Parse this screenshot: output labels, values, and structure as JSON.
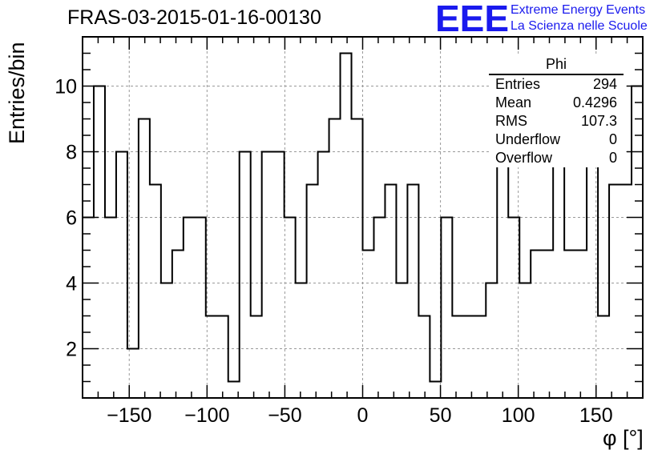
{
  "title": "FRAS-03-2015-01-16-00130",
  "logo": {
    "mark": "EEE",
    "line1": "Extreme Energy Events",
    "line2": "La Scienza nelle Scuole"
  },
  "stats_box": {
    "title": "Phi",
    "rows": [
      {
        "label": "Entries",
        "value": "294"
      },
      {
        "label": "Mean",
        "value": "0.4296"
      },
      {
        "label": "RMS",
        "value": "107.3"
      },
      {
        "label": "Underflow",
        "value": "0"
      },
      {
        "label": "Overflow",
        "value": "0"
      }
    ]
  },
  "chart_data": {
    "type": "bar",
    "style": "step-histogram",
    "title": "FRAS-03-2015-01-16-00130",
    "xlabel": "φ [°]",
    "ylabel": "Entries/bin",
    "xlim": [
      -180,
      180
    ],
    "ylim": [
      0.5,
      11.5
    ],
    "bin_width": 7.2,
    "bin_edges_start": -180,
    "values": [
      6,
      10,
      6,
      8,
      2,
      9,
      7,
      4,
      5,
      6,
      6,
      3,
      3,
      1,
      8,
      3,
      8,
      8,
      6,
      4,
      7,
      8,
      9,
      11,
      9,
      5,
      6,
      7,
      4,
      7,
      3,
      1,
      6,
      3,
      3,
      3,
      4,
      10,
      6,
      4,
      5,
      5,
      8,
      5,
      5,
      10,
      3,
      7,
      7,
      10
    ],
    "xticks": [
      -150,
      -100,
      -50,
      0,
      50,
      100,
      150
    ],
    "xtick_labels": [
      "−150",
      "−100",
      "−50",
      "0",
      "50",
      "100",
      "150"
    ],
    "yticks": [
      2,
      4,
      6,
      8,
      10
    ],
    "ytick_labels": [
      "2",
      "4",
      "6",
      "8",
      "10"
    ],
    "grid": true,
    "legend": "none"
  }
}
